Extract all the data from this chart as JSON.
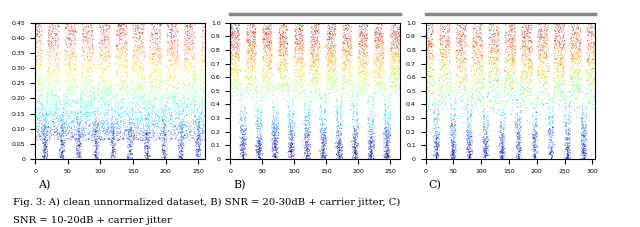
{
  "caption_line1": "Fig. 3: A) clean unnormalized dataset, B) SNR = 20-30dB + carrier jitter, C)",
  "caption_line2": "SNR = 10-20dB + carrier jitter",
  "label_A": "A)",
  "label_B": "B)",
  "label_C": "C)",
  "fig_width": 6.4,
  "fig_height": 2.27,
  "n_bursts": 10,
  "x_max_A": 260,
  "x_max_B": 265,
  "x_max_C": 305,
  "y_max_A": 0.45,
  "y_max_BC": 1.0,
  "background": "#ffffff",
  "n_points": 8000,
  "header_bar_color": "#888888",
  "yticks_A": [
    0,
    0.05,
    0.1,
    0.15,
    0.2,
    0.25,
    0.3,
    0.35,
    0.4,
    0.45
  ],
  "yticks_BC": [
    0,
    0.1,
    0.2,
    0.3,
    0.4,
    0.5,
    0.6,
    0.7,
    0.8,
    0.9,
    1.0
  ],
  "xticks_A": [
    0,
    50,
    100,
    150,
    200,
    250
  ],
  "xticks_B": [
    0,
    50,
    100,
    150,
    200,
    250
  ],
  "xticks_C": [
    0,
    50,
    100,
    150,
    200,
    250,
    300
  ]
}
